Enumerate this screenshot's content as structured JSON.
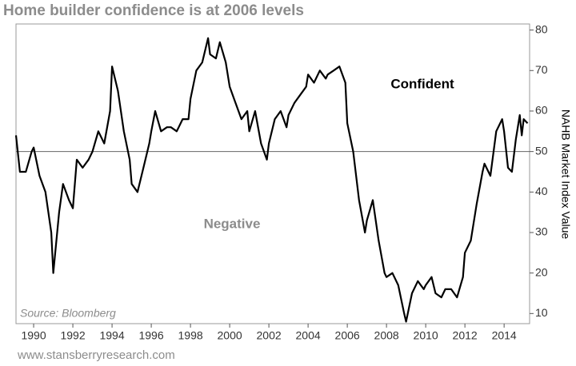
{
  "chart_data": {
    "type": "line",
    "title": "Home builder confidence is at 2006 levels",
    "y_label": "NAHB Market Index Value",
    "annotations": [
      "Confident",
      "Negative"
    ],
    "source": "Source: Bloomberg",
    "footer": "www.stansberryresearch.com",
    "color": "#000000",
    "reference_line": 50,
    "x": [
      1989.1,
      1989.3,
      1989.6,
      1989.9,
      1990.0,
      1990.3,
      1990.6,
      1990.9,
      1991.0,
      1991.3,
      1991.5,
      1991.8,
      1992.0,
      1992.2,
      1992.5,
      1992.8,
      1993.0,
      1993.3,
      1993.6,
      1993.9,
      1994.0,
      1994.3,
      1994.6,
      1994.9,
      1995.0,
      1995.3,
      1995.6,
      1995.9,
      1996.0,
      1996.2,
      1996.5,
      1996.8,
      1997.0,
      1997.3,
      1997.6,
      1997.9,
      1998.0,
      1998.3,
      1998.6,
      1998.9,
      1999.0,
      1999.3,
      1999.5,
      1999.8,
      2000.0,
      2000.3,
      2000.6,
      2000.9,
      2001.0,
      2001.3,
      2001.6,
      2001.9,
      2002.0,
      2002.3,
      2002.6,
      2002.9,
      2003.0,
      2003.3,
      2003.6,
      2003.9,
      2004.0,
      2004.3,
      2004.6,
      2004.9,
      2005.0,
      2005.3,
      2005.6,
      2005.9,
      2006.0,
      2006.3,
      2006.6,
      2006.9,
      2007.0,
      2007.3,
      2007.6,
      2007.9,
      2008.0,
      2008.3,
      2008.6,
      2008.9,
      2009.0,
      2009.3,
      2009.6,
      2009.9,
      2010.0,
      2010.3,
      2010.5,
      2010.8,
      2011.0,
      2011.3,
      2011.6,
      2011.9,
      2012.0,
      2012.3,
      2012.6,
      2012.9,
      2013.0,
      2013.3,
      2013.6,
      2013.9,
      2014.0,
      2014.2,
      2014.4,
      2014.6,
      2014.8,
      2014.9,
      2015.0,
      2015.2
    ],
    "values": [
      54,
      45,
      45,
      50,
      51,
      44,
      40,
      30,
      20,
      35,
      42,
      38,
      36,
      48,
      46,
      48,
      50,
      55,
      52,
      60,
      71,
      65,
      55,
      48,
      42,
      40,
      46,
      52,
      55,
      60,
      55,
      56,
      56,
      55,
      58,
      58,
      63,
      70,
      72,
      78,
      74,
      73,
      77,
      72,
      66,
      62,
      58,
      60,
      55,
      60,
      52,
      48,
      52,
      58,
      60,
      56,
      59,
      62,
      64,
      66,
      69,
      67,
      70,
      68,
      69,
      70,
      71,
      67,
      57,
      50,
      38,
      30,
      33,
      38,
      28,
      20,
      19,
      20,
      17,
      10,
      8,
      15,
      18,
      16,
      17,
      19,
      15,
      14,
      16,
      16,
      14,
      19,
      25,
      28,
      37,
      45,
      47,
      44,
      55,
      58,
      55,
      46,
      45,
      53,
      59,
      54,
      58,
      57
    ],
    "xlim": [
      1989.1,
      2015.3
    ],
    "ylim": [
      7.5,
      81.5
    ],
    "xticks": [
      1990,
      1992,
      1994,
      1996,
      1998,
      2000,
      2002,
      2004,
      2006,
      2008,
      2010,
      2012,
      2014
    ],
    "yticks": [
      10,
      20,
      30,
      40,
      50,
      60,
      70,
      80
    ]
  }
}
